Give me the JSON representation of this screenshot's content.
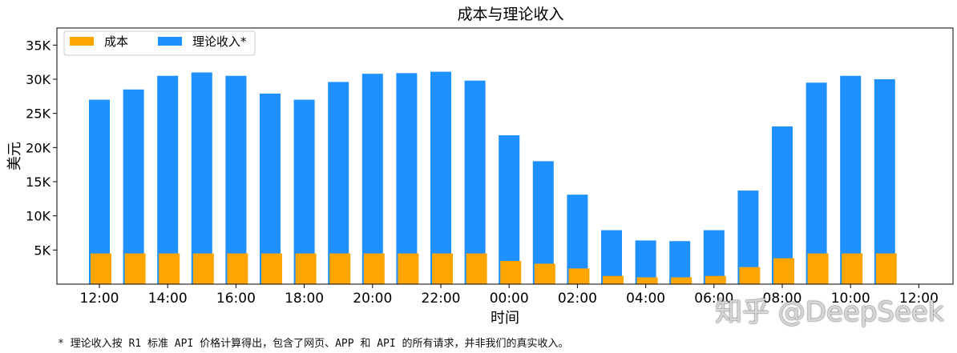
{
  "chart_data": {
    "type": "bar",
    "title": "成本与理论收入",
    "xlabel": "时间",
    "ylabel": "美元",
    "x_tick_labels": [
      "12:00",
      "14:00",
      "16:00",
      "18:00",
      "20:00",
      "22:00",
      "00:00",
      "02:00",
      "04:00",
      "06:00",
      "08:00",
      "10:00",
      "12:00"
    ],
    "y_tick_labels": [
      "5K",
      "10K",
      "15K",
      "20K",
      "25K",
      "30K",
      "35K"
    ],
    "y_ticks": [
      5000,
      10000,
      15000,
      20000,
      25000,
      30000,
      35000
    ],
    "ylim": [
      0,
      37500
    ],
    "bar_count": 24,
    "legend_position": "top-left",
    "grid": false,
    "series": [
      {
        "name": "成本",
        "color": "#FFA500",
        "values": [
          4500,
          4500,
          4500,
          4500,
          4500,
          4500,
          4500,
          4500,
          4500,
          4500,
          4500,
          4500,
          3400,
          3000,
          2300,
          1200,
          1000,
          1000,
          1200,
          2500,
          3800,
          4500,
          4500,
          4500
        ]
      },
      {
        "name": "理论收入*",
        "color": "#1E90FF",
        "values": [
          27000,
          28500,
          30500,
          31000,
          30500,
          27900,
          27000,
          29600,
          30800,
          30900,
          31100,
          29800,
          21800,
          18000,
          13100,
          7900,
          6400,
          6300,
          7900,
          13700,
          23100,
          29500,
          30500,
          30000
        ]
      }
    ]
  },
  "footnote": "* 理论收入按 R1 标准 API 价格计算得出，包含了网页、APP 和 API 的所有请求，并非我们的真实收入。",
  "watermark": "知乎 @DeepSeek"
}
